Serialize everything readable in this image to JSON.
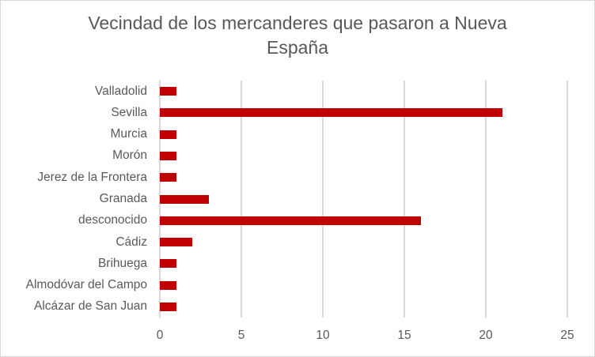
{
  "chart": {
    "title_line1": "Vecindad de los mercanderes que pasaron a Nueva",
    "title_line2": "España",
    "bar_color": "#c00000",
    "ticks": [
      "0",
      "5",
      "10",
      "15",
      "20",
      "25"
    ]
  },
  "chart_data": {
    "type": "bar",
    "orientation": "horizontal",
    "title": "Vecindad de los mercanderes que pasaron a Nueva España",
    "categories": [
      "Valladolid",
      "Sevilla",
      "Murcia",
      "Morón",
      "Jerez de la Frontera",
      "Granada",
      "desconocido",
      "Cádiz",
      "Brihuega",
      "Almodóvar del Campo",
      "Alcázar de San Juan"
    ],
    "values": [
      1,
      21,
      1,
      1,
      1,
      3,
      16,
      2,
      1,
      1,
      1
    ],
    "xlabel": "",
    "ylabel": "",
    "xlim": [
      0,
      25
    ],
    "x_ticks": [
      0,
      5,
      10,
      15,
      20,
      25
    ],
    "grid": "vertical major gridlines",
    "legend": "none",
    "series_color": "#c00000"
  }
}
